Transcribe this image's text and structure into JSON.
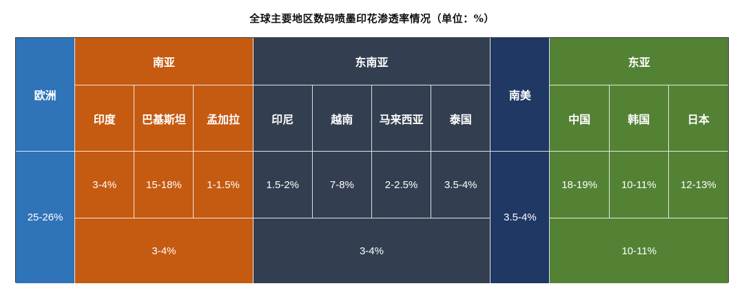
{
  "title": "全球主要地区数码喷墨印花渗透率情况（单位：%）",
  "colors": {
    "europe": "#2f73b8",
    "south_asia": "#c55a11",
    "southeast_asia": "#333f50",
    "south_america": "#203864",
    "east_asia": "#548235"
  },
  "europe": {
    "label": "欧洲",
    "value": "25-26%"
  },
  "south_asia": {
    "label": "南亚",
    "countries": [
      {
        "name": "印度",
        "value": "3-4%"
      },
      {
        "name": "巴基斯坦",
        "value": "15-18%"
      },
      {
        "name": "孟加拉",
        "value": "1-1.5%"
      }
    ],
    "total": "3-4%"
  },
  "southeast_asia": {
    "label": "东南亚",
    "countries": [
      {
        "name": "印尼",
        "value": "1.5-2%"
      },
      {
        "name": "越南",
        "value": "7-8%"
      },
      {
        "name": "马来西亚",
        "value": "2-2.5%"
      },
      {
        "name": "泰国",
        "value": "3.5-4%"
      }
    ],
    "total": "3-4%"
  },
  "south_america": {
    "label": "南美",
    "value": "3.5-4%"
  },
  "east_asia": {
    "label": "东亚",
    "countries": [
      {
        "name": "中国",
        "value": "18-19%"
      },
      {
        "name": "韩国",
        "value": "10-11%"
      },
      {
        "name": "日本",
        "value": "12-13%"
      }
    ],
    "total": "10-11%"
  }
}
